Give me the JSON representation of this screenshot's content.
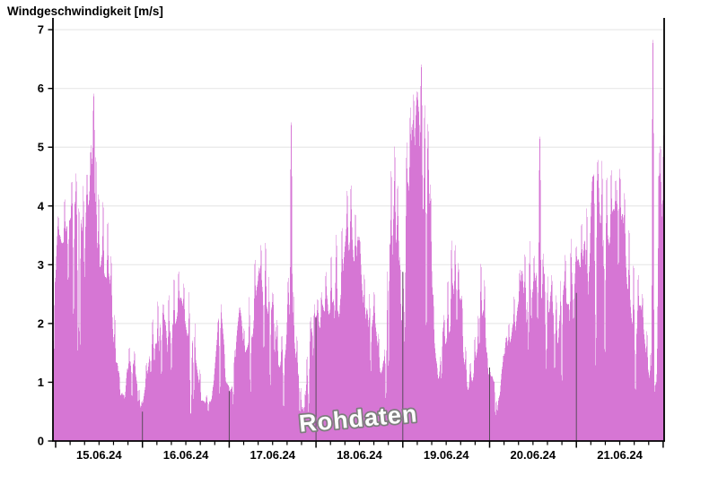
{
  "title": "Windgeschwindigkeit [m/s]",
  "watermark": "Rohdaten",
  "colors": {
    "fill": "#d676d4",
    "axis": "#000000",
    "grid": "#e8e8e8",
    "day_line": "#5a4b5c",
    "background": "#ffffff",
    "watermark_fill": "#fdfdfd",
    "watermark_outline": "#7d7d7d"
  },
  "chart_data": {
    "type": "area",
    "title": "Windgeschwindigkeit [m/s]",
    "unit": "m/s",
    "ylim": [
      0,
      7.2
    ],
    "yticks": [
      0,
      1,
      2,
      3,
      4,
      5,
      6,
      7
    ],
    "grid": "horizontal-light",
    "x_day_labels": [
      "15.06.24",
      "16.06.24",
      "17.06.24",
      "18.06.24",
      "19.06.24",
      "20.06.24",
      "21.06.24"
    ],
    "x_range_days": [
      -0.031,
      7.012
    ],
    "major_tick_every_hours": 24,
    "minor_tick_every_hours": 4,
    "envelope_days_value": [
      [
        -0.031,
        3.3
      ],
      [
        0.031,
        3.9
      ],
      [
        0.103,
        4.3
      ],
      [
        0.186,
        4.6
      ],
      [
        0.238,
        4.7
      ],
      [
        0.269,
        4.95
      ],
      [
        0.321,
        4.6
      ],
      [
        0.362,
        4.7
      ],
      [
        0.403,
        5.1
      ],
      [
        0.434,
        5.3
      ],
      [
        0.465,
        5.2
      ],
      [
        0.496,
        4.5
      ],
      [
        0.548,
        4.35
      ],
      [
        0.6,
        4.0
      ],
      [
        0.641,
        3.3
      ],
      [
        0.683,
        2.3
      ],
      [
        0.734,
        1.2
      ],
      [
        0.786,
        0.8
      ],
      [
        0.848,
        1.7
      ],
      [
        0.91,
        1.6
      ],
      [
        0.962,
        0.95
      ],
      [
        0.993,
        0.7
      ],
      [
        1.045,
        1.4
      ],
      [
        1.117,
        2.2
      ],
      [
        1.179,
        2.6
      ],
      [
        1.241,
        2.4
      ],
      [
        1.303,
        2.7
      ],
      [
        1.365,
        3.0
      ],
      [
        1.417,
        3.05
      ],
      [
        1.479,
        2.8
      ],
      [
        1.541,
        2.75
      ],
      [
        1.603,
        2.2
      ],
      [
        1.665,
        1.3
      ],
      [
        1.737,
        0.8
      ],
      [
        1.81,
        0.9
      ],
      [
        1.872,
        2.1
      ],
      [
        1.903,
        2.4
      ],
      [
        1.944,
        1.6
      ],
      [
        1.996,
        0.95
      ],
      [
        2.058,
        1.6
      ],
      [
        2.12,
        2.3
      ],
      [
        2.172,
        2.0
      ],
      [
        2.234,
        2.7
      ],
      [
        2.296,
        3.3
      ],
      [
        2.368,
        3.5
      ],
      [
        2.42,
        3.6
      ],
      [
        2.461,
        3.0
      ],
      [
        2.503,
        2.6
      ],
      [
        2.554,
        2.2
      ],
      [
        2.606,
        1.9
      ],
      [
        2.647,
        1.5
      ],
      [
        2.678,
        2.9
      ],
      [
        2.709,
        2.5
      ],
      [
        2.74,
        2.7
      ],
      [
        2.782,
        1.9
      ],
      [
        2.823,
        1.0
      ],
      [
        2.854,
        0.6
      ],
      [
        2.896,
        1.6
      ],
      [
        2.937,
        2.2
      ],
      [
        2.978,
        2.4
      ],
      [
        3.02,
        2.5
      ],
      [
        3.061,
        2.6
      ],
      [
        3.113,
        3.0
      ],
      [
        3.175,
        3.4
      ],
      [
        3.237,
        3.7
      ],
      [
        3.299,
        3.9
      ],
      [
        3.361,
        4.45
      ],
      [
        3.402,
        4.55
      ],
      [
        3.454,
        4.1
      ],
      [
        3.506,
        3.5
      ],
      [
        3.558,
        3.0
      ],
      [
        3.62,
        2.7
      ],
      [
        3.671,
        2.65
      ],
      [
        3.723,
        1.9
      ],
      [
        3.775,
        1.35
      ],
      [
        3.826,
        3.2
      ],
      [
        3.868,
        5.0
      ],
      [
        3.909,
        5.3
      ],
      [
        3.94,
        4.6
      ],
      [
        3.971,
        3.2
      ],
      [
        4.002,
        3.0
      ],
      [
        4.043,
        5.3
      ],
      [
        4.085,
        5.9
      ],
      [
        4.126,
        6.1
      ],
      [
        4.167,
        6.0
      ],
      [
        4.209,
        6.1
      ],
      [
        4.25,
        6.0
      ],
      [
        4.291,
        5.6
      ],
      [
        4.322,
        4.5
      ],
      [
        4.353,
        2.5
      ],
      [
        4.395,
        1.3
      ],
      [
        4.436,
        1.5
      ],
      [
        4.478,
        2.2
      ],
      [
        4.519,
        3.0
      ],
      [
        4.56,
        3.65
      ],
      [
        4.602,
        3.5
      ],
      [
        4.643,
        3.1
      ],
      [
        4.684,
        2.5
      ],
      [
        4.726,
        1.7
      ],
      [
        4.777,
        1.4
      ],
      [
        4.829,
        1.9
      ],
      [
        4.87,
        2.3
      ],
      [
        4.901,
        3.25
      ],
      [
        4.943,
        2.9
      ],
      [
        4.974,
        1.5
      ],
      [
        5.005,
        1.2
      ],
      [
        5.057,
        1.0
      ],
      [
        5.108,
        0.75
      ],
      [
        5.16,
        1.5
      ],
      [
        5.222,
        2.1
      ],
      [
        5.284,
        2.6
      ],
      [
        5.346,
        3.0
      ],
      [
        5.408,
        3.4
      ],
      [
        5.46,
        3.6
      ],
      [
        5.512,
        3.3
      ],
      [
        5.574,
        3.4
      ],
      [
        5.615,
        3.3
      ],
      [
        5.667,
        3.0
      ],
      [
        5.719,
        2.9
      ],
      [
        5.77,
        2.6
      ],
      [
        5.822,
        2.9
      ],
      [
        5.874,
        3.3
      ],
      [
        5.936,
        3.6
      ],
      [
        5.998,
        3.4
      ],
      [
        6.06,
        3.9
      ],
      [
        6.122,
        4.3
      ],
      [
        6.184,
        4.5
      ],
      [
        6.246,
        4.9
      ],
      [
        6.298,
        5.05
      ],
      [
        6.35,
        4.8
      ],
      [
        6.401,
        4.85
      ],
      [
        6.453,
        4.6
      ],
      [
        6.505,
        4.7
      ],
      [
        6.557,
        4.4
      ],
      [
        6.608,
        3.9
      ],
      [
        6.66,
        3.3
      ],
      [
        6.712,
        3.0
      ],
      [
        6.763,
        2.6
      ],
      [
        6.815,
        2.0
      ],
      [
        6.857,
        1.6
      ],
      [
        6.877,
        1.7
      ],
      [
        6.908,
        1.0
      ],
      [
        6.929,
        1.2
      ],
      [
        6.95,
        5.1
      ],
      [
        6.97,
        5.25
      ],
      [
        7.001,
        5.2
      ],
      [
        7.012,
        5.2
      ]
    ],
    "narrow_spikes_days_value": [
      [
        0.434,
        5.93
      ],
      [
        2.709,
        5.44
      ],
      [
        4.209,
        6.43
      ],
      [
        5.574,
        5.2
      ],
      [
        6.877,
        6.85
      ]
    ],
    "day_boundary_lines": [
      {
        "day": 1,
        "top": 0.5
      },
      {
        "day": 2,
        "top": 0.85
      },
      {
        "day": 3,
        "top": 2.1
      },
      {
        "day": 4,
        "top": 2.88
      },
      {
        "day": 5,
        "top": 1.25
      },
      {
        "day": 6,
        "top": 2.52
      }
    ],
    "legend": "none"
  }
}
